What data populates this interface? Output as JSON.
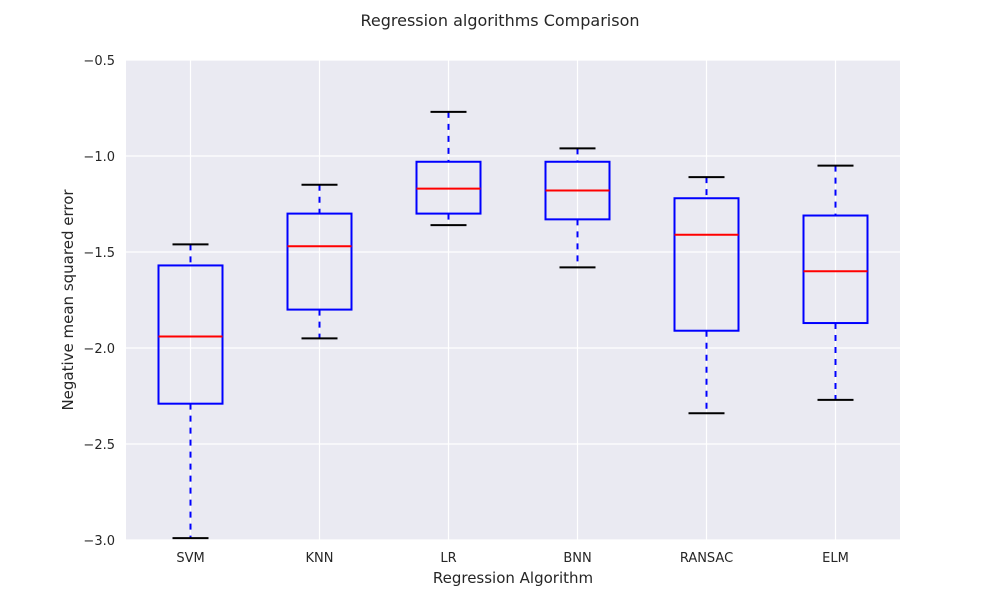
{
  "chart_data": {
    "type": "box",
    "title": "Regression algorithms Comparison",
    "xlabel": "Regression Algorithm",
    "ylabel": "Negative mean squared error",
    "ylim": [
      -3.0,
      -0.5
    ],
    "yticks": [
      -3.0,
      -2.5,
      -2.0,
      -1.5,
      -1.0,
      -0.5
    ],
    "ytick_labels": [
      "−3.0",
      "−2.5",
      "−2.0",
      "−1.5",
      "−1.0",
      "−0.5"
    ],
    "grid": true,
    "categories": [
      "SVM",
      "KNN",
      "LR",
      "BNN",
      "RANSAC",
      "ELM"
    ],
    "boxes": [
      {
        "label": "SVM",
        "whisker_low": -2.99,
        "q1": -2.29,
        "median": -1.94,
        "q3": -1.57,
        "whisker_high": -1.46
      },
      {
        "label": "KNN",
        "whisker_low": -1.95,
        "q1": -1.8,
        "median": -1.47,
        "q3": -1.3,
        "whisker_high": -1.15
      },
      {
        "label": "LR",
        "whisker_low": -1.36,
        "q1": -1.3,
        "median": -1.17,
        "q3": -1.03,
        "whisker_high": -0.77
      },
      {
        "label": "BNN",
        "whisker_low": -1.58,
        "q1": -1.33,
        "median": -1.18,
        "q3": -1.03,
        "whisker_high": -0.96
      },
      {
        "label": "RANSAC",
        "whisker_low": -2.34,
        "q1": -1.91,
        "median": -1.41,
        "q3": -1.22,
        "whisker_high": -1.11
      },
      {
        "label": "ELM",
        "whisker_low": -2.27,
        "q1": -1.87,
        "median": -1.6,
        "q3": -1.31,
        "whisker_high": -1.05
      }
    ],
    "colors": {
      "background": "#eaeaf2",
      "grid": "#ffffff",
      "box": "#0000ff",
      "median": "#ff0000",
      "cap": "#000000"
    }
  }
}
